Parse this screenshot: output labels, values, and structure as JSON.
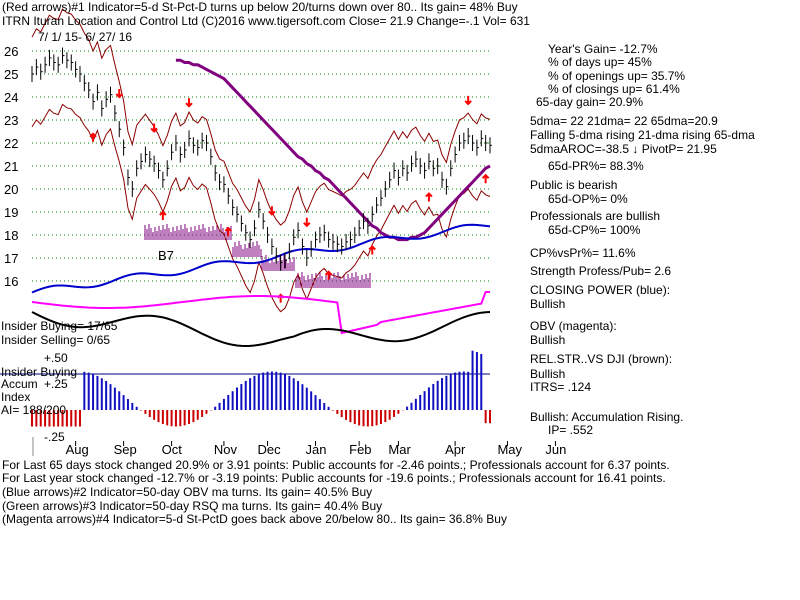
{
  "header": {
    "line1": "(Red arrows)#1 Indicator=5-d St-Pct-D turns up below 20/turns down over 80.. Its gain= 48% Buy",
    "line2": "ITRN   Ituran Location and Control Ltd  (C)2016 www.tigersoft.com     Close=  21.9  Change=-.1 Vol= 631",
    "date_range": "7/ 1/ 15- 6/ 27/ 16"
  },
  "stats": {
    "years_gain": "Year's Gain= -12.7%",
    "pct_days_up": "% of days up= 45%",
    "pct_openings_up": "% of openings up= 35.7%",
    "pct_closings_up": "% of closings up= 61.4%",
    "day65_gain": "65-day gain= 20.9%",
    "dma_line": "5dma= 22 21dma= 22 65dma=20.9",
    "dma_trend": "Falling 5-dma rising 21-dma rising 65-dma",
    "aroc_line": "5dmaAROC=-38.5 ↓  PivotP= 21.95",
    "pr_line": "65d-PR%= 88.3%",
    "public_title": "Public is bearish",
    "public_value": "65d-OP%= 0%",
    "prof_title": "Professionals are bullish",
    "prof_value": "65d-CP%= 100%",
    "cp_vs_pr": "CP%vsPr%=  11.6%",
    "strength": "Strength Profess/Pub= 2.6",
    "closing_power_title": "CLOSING POWER (blue):",
    "closing_power_value": "Bullish",
    "obv_title": "OBV (magenta):",
    "obv_value": "Bullish",
    "relstr_title": "REL.STR..VS DJI (brown):",
    "relstr_value": "Bullish",
    "itrs": "ITRS= .124",
    "accum_title": "Bullish: Accumulation Rising.",
    "ip": "IP=  .552"
  },
  "indicators": {
    "insider_buying": "Insider Buying= 17/65",
    "insider_selling": "Insider Selling= 0/65",
    "insider_buying_label": "Insider Buying",
    "accum_label": "Accum",
    "index_label": "Index",
    "ai_label": "AI= 188/200",
    "plus50": "+.50",
    "plus25": "+.25",
    "minus25": "-.25",
    "b7": "B7"
  },
  "footer": {
    "line1": "For Last 65 days stock changed  20.9% or  3.91 points:  Public accounts for -2.46 points.;  Professionals account for  6.37 points.",
    "line2": "For Last year stock changed -12.7% or -3.19 points:  Public accounts for -19.6 points.;  Professionals account for  16.41 points.",
    "line3": "(Blue arrows)#2 Indicator=50-day OBV ma turns. Its gain= 40.5% Buy",
    "line4": "(Green arrows)#3 Indicator=50-day RSQ ma turns. Its gain= 40.4% Buy",
    "line5": "(Magenta arrows)#4 Indicator=5-d St-PctD goes back above 20/below 80.. Its gain= 36.8% Buy"
  },
  "colors": {
    "price": "#000000",
    "band": "#8b0000",
    "ma65": "#800080",
    "closing_power": "#0000cc",
    "obv": "#ff00ff",
    "accum_pos": "#1010c0",
    "accum_neg": "#cc0000",
    "arrow": "#ff0000",
    "grid": "#008000",
    "volume": "#800080"
  },
  "chart_data": {
    "type": "line",
    "title": "ITRN Ituran Location and Control Ltd",
    "xlabel": "",
    "ylabel": "",
    "ylim": [
      15.5,
      26.5
    ],
    "y_ticks": [
      16,
      17,
      18,
      19,
      20,
      21,
      22,
      23,
      24,
      25,
      26
    ],
    "x_ticks": [
      "Aug",
      "Sep",
      "Oct",
      "Nov",
      "Dec",
      "Jan",
      "Feb",
      "Mar",
      "Apr",
      "May",
      "Jun"
    ],
    "x_tick_index": [
      10,
      21,
      32,
      44,
      54,
      65,
      75,
      84,
      97,
      109,
      120
    ],
    "price_close": [
      25.0,
      25.3,
      25.1,
      25.4,
      25.7,
      25.5,
      25.4,
      25.8,
      25.6,
      25.5,
      25.2,
      25.0,
      24.6,
      24.3,
      23.8,
      24.2,
      23.5,
      23.9,
      24.1,
      23.3,
      22.6,
      21.8,
      20.5,
      20.0,
      20.9,
      21.2,
      21.5,
      21.3,
      21.1,
      20.8,
      20.4,
      20.9,
      21.6,
      22.0,
      21.5,
      21.7,
      22.2,
      21.9,
      21.8,
      22.1,
      22.0,
      21.4,
      20.7,
      20.3,
      20.2,
      19.7,
      19.2,
      18.9,
      18.5,
      18.1,
      17.8,
      18.3,
      19.1,
      18.6,
      18.0,
      17.5,
      17.1,
      16.8,
      16.9,
      17.3,
      17.9,
      18.2,
      17.5,
      17.0,
      17.4,
      17.8,
      18.0,
      18.1,
      17.8,
      17.7,
      17.6,
      17.5,
      17.7,
      17.8,
      18.0,
      18.3,
      18.6,
      18.4,
      18.9,
      19.3,
      19.6,
      20.0,
      20.4,
      20.8,
      20.5,
      20.9,
      20.7,
      21.1,
      21.3,
      21.0,
      20.8,
      21.2,
      20.9,
      21.0,
      20.4,
      20.1,
      20.9,
      21.5,
      22.0,
      22.1,
      22.3,
      22.0,
      21.8,
      22.2,
      22.0,
      21.9
    ],
    "ma65": [
      25.6,
      25.6,
      25.5,
      25.5,
      25.4,
      25.4,
      25.3,
      25.2,
      25.1,
      25.0,
      24.9,
      24.8,
      24.6,
      24.4,
      24.2,
      24.0,
      23.8,
      23.6,
      23.4,
      23.2,
      23.0,
      22.8,
      22.6,
      22.4,
      22.2,
      22.0,
      21.8,
      21.6,
      21.4,
      21.3,
      21.1,
      21.0,
      20.8,
      20.7,
      20.5,
      20.4,
      20.2,
      20.0,
      19.8,
      19.6,
      19.4,
      19.2,
      19.0,
      18.8,
      18.6,
      18.4,
      18.3,
      18.1,
      18.0,
      17.9,
      17.9,
      17.8,
      17.8,
      17.8,
      17.9,
      17.9,
      18.0,
      18.1,
      18.3,
      18.5,
      18.7,
      18.9,
      19.1,
      19.3,
      19.5,
      19.7,
      19.9,
      20.1,
      20.3,
      20.5,
      20.7,
      20.9,
      21.0
    ],
    "annotations": [
      "B7"
    ]
  }
}
